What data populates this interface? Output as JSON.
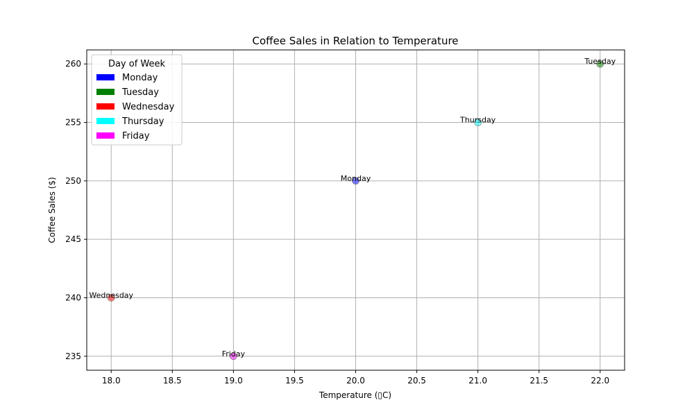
{
  "chart_data": {
    "type": "scatter",
    "title": "Coffee Sales in Relation to Temperature",
    "xlabel": "Temperature (▯C)",
    "ylabel": "Coffee Sales ($)",
    "xlim": [
      17.8,
      22.2
    ],
    "ylim": [
      233.8,
      261.2
    ],
    "xticks": [
      18.0,
      18.5,
      19.0,
      19.5,
      20.0,
      20.5,
      21.0,
      21.5,
      22.0
    ],
    "xtick_labels": [
      "18.0",
      "18.5",
      "19.0",
      "19.5",
      "20.0",
      "20.5",
      "21.0",
      "21.5",
      "22.0"
    ],
    "yticks": [
      235,
      240,
      245,
      250,
      255,
      260
    ],
    "ytick_labels": [
      "235",
      "240",
      "245",
      "250",
      "255",
      "260"
    ],
    "grid": true,
    "legend": {
      "title": "Day of Week",
      "placement": "top-left",
      "entries": [
        {
          "label": "Monday",
          "color": "#0000ff"
        },
        {
          "label": "Tuesday",
          "color": "#008000"
        },
        {
          "label": "Wednesday",
          "color": "#ff0000"
        },
        {
          "label": "Thursday",
          "color": "#00ffff"
        },
        {
          "label": "Friday",
          "color": "#ff00ff"
        }
      ]
    },
    "points": [
      {
        "day": "Monday",
        "x": 20,
        "y": 250,
        "color": "#0000ff"
      },
      {
        "day": "Tuesday",
        "x": 22,
        "y": 260,
        "color": "#008000"
      },
      {
        "day": "Wednesday",
        "x": 18,
        "y": 240,
        "color": "#ff0000"
      },
      {
        "day": "Thursday",
        "x": 21,
        "y": 255,
        "color": "#00ffff"
      },
      {
        "day": "Friday",
        "x": 19,
        "y": 235,
        "color": "#ff00ff"
      }
    ]
  }
}
